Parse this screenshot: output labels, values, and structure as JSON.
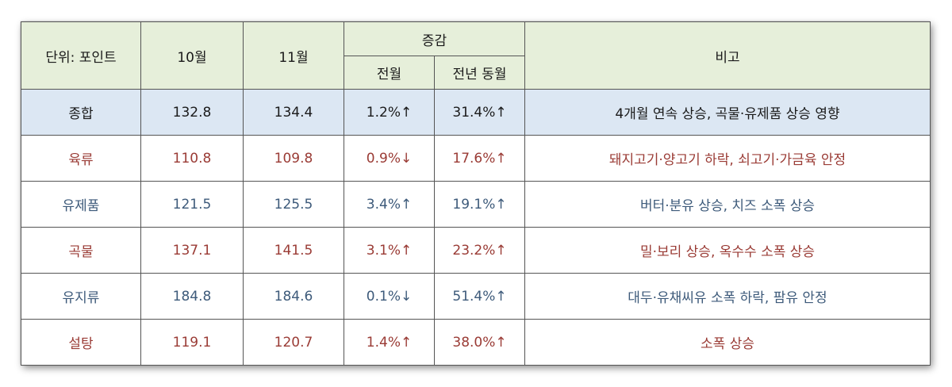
{
  "header": {
    "unit": "단위: 포인트",
    "oct": "10월",
    "nov": "11월",
    "change": "증감",
    "prev_month": "전월",
    "prev_year": "전년 동월",
    "remarks": "비고"
  },
  "rows": [
    {
      "name": "종합",
      "oct": "132.8",
      "nov": "134.4",
      "mom": "1.2%↑",
      "yoy": "31.4%↑",
      "note": "4개월 연속 상승, 곡물·유제품 상승 영향"
    },
    {
      "name": "육류",
      "oct": "110.8",
      "nov": "109.8",
      "mom": "0.9%↓",
      "yoy": "17.6%↑",
      "note": "돼지고기·양고기 하락, 쇠고기·가금육 안정"
    },
    {
      "name": "유제품",
      "oct": "121.5",
      "nov": "125.5",
      "mom": "3.4%↑",
      "yoy": "19.1%↑",
      "note": "버터·분유 상승, 치즈 소폭 상승"
    },
    {
      "name": "곡물",
      "oct": "137.1",
      "nov": "141.5",
      "mom": "3.1%↑",
      "yoy": "23.2%↑",
      "note": "밀·보리 상승, 옥수수 소폭 상승"
    },
    {
      "name": "유지류",
      "oct": "184.8",
      "nov": "184.6",
      "mom": "0.1%↓",
      "yoy": "51.4%↑",
      "note": "대두·유채씨유 소폭 하락, 팜유 안정"
    },
    {
      "name": "설탕",
      "oct": "119.1",
      "nov": "120.7",
      "mom": "1.4%↑",
      "yoy": "38.0%↑",
      "note": "소폭 상승"
    }
  ],
  "colors": {
    "header_bg": "#e6efda",
    "summary_bg": "#dce7f3",
    "red_text": "#9a3b35",
    "blue_text": "#3d5a7a"
  }
}
